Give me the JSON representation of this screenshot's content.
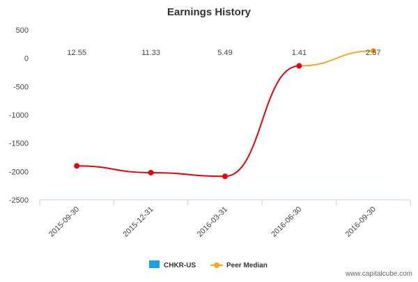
{
  "chart_data": {
    "type": "line",
    "title": "Earnings History",
    "categories": [
      "2015-09-30",
      "2015-12-31",
      "2016-03-31",
      "2016-06-30",
      "2016-09-30"
    ],
    "ylim": [
      -2500,
      500
    ],
    "yticks": [
      500,
      0,
      -500,
      -1000,
      -1500,
      -2000,
      -2500
    ],
    "series": [
      {
        "name": "CHKR-US",
        "color": "#1aa1e8",
        "values": [
          -1900,
          -2020,
          -2085,
          -135,
          null
        ]
      },
      {
        "name": "Peer Median",
        "color": "#f5a623",
        "values": [
          null,
          null,
          null,
          -135,
          130
        ]
      }
    ],
    "trend_color": "#e8000b",
    "data_labels": [
      "12.55",
      "11.33",
      "5.49",
      "1.41",
      "2.57"
    ],
    "grid": false,
    "legend": "bottom-center"
  },
  "watermark": "www.capitalcube.com"
}
